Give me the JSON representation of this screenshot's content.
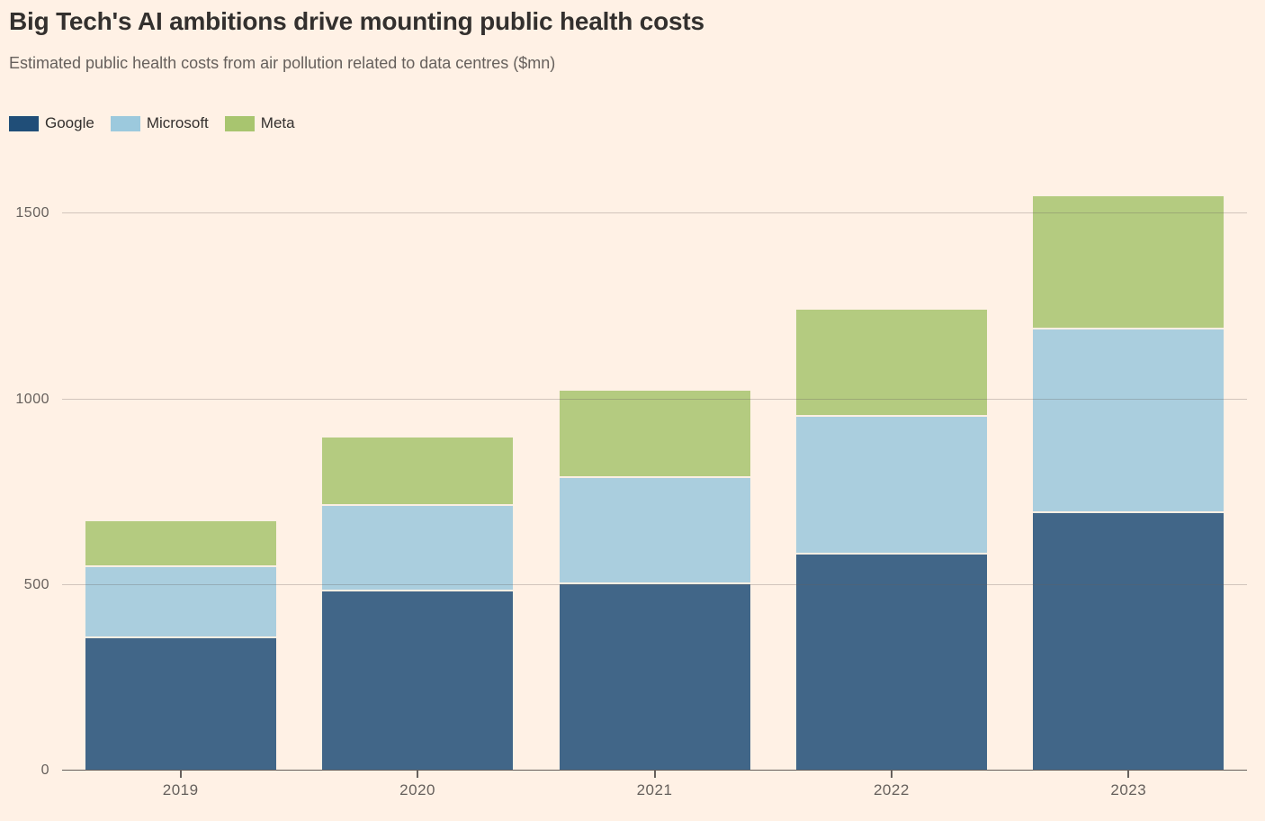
{
  "header": {
    "title": "Big Tech's AI ambitions drive mounting public health costs",
    "subtitle": "Estimated public health costs from air pollution related to data centres ($mn)"
  },
  "theme": {
    "background": "#FFF1E5",
    "text_dark": "#33302E",
    "text_muted": "#66605C",
    "gridline": "rgba(102,96,92,0.30)",
    "axis_line": "#66605C",
    "segment_separator": "#FBEFE3",
    "bar_opacity": 0.85
  },
  "chart_data": {
    "type": "bar",
    "stacked": true,
    "title": "Big Tech's AI ambitions drive mounting public health costs",
    "subtitle": "Estimated public health costs from air pollution related to data centres ($mn)",
    "categories": [
      "2019",
      "2020",
      "2021",
      "2022",
      "2023"
    ],
    "series": [
      {
        "name": "Google",
        "color": "#204E78",
        "values": [
          355,
          480,
          500,
          580,
          690
        ]
      },
      {
        "name": "Microsoft",
        "color": "#9CC9DD",
        "values": [
          190,
          230,
          285,
          370,
          495
        ]
      },
      {
        "name": "Meta",
        "color": "#A8C56F",
        "values": [
          125,
          185,
          235,
          290,
          360
        ]
      }
    ],
    "totals": [
      670,
      895,
      1020,
      1240,
      1545
    ],
    "xlabel": "",
    "ylabel": "",
    "ylim": [
      0,
      1600
    ],
    "yticks": [
      0,
      500,
      1000,
      1500
    ],
    "grid": "horizontal",
    "gridlines_over_bars": true,
    "legend_position": "top-left"
  }
}
